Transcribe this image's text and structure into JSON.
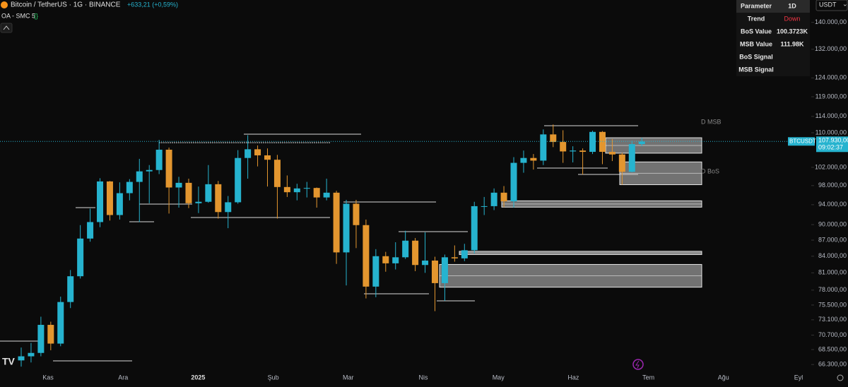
{
  "header": {
    "symbol": "Bitcoin / TetherUS · 1G · BINANCE",
    "change": "+633,21 (+0,59%)",
    "indicator": "OA - SMC 5"
  },
  "currency": "USDT",
  "table": {
    "rows": [
      [
        "Parameter",
        "1D"
      ],
      [
        "Trend",
        "Down"
      ],
      [
        "BoS Value",
        "100.3723K"
      ],
      [
        "MSB Value",
        "111.98K"
      ],
      [
        "BoS Signal"
      ],
      [
        "MSB Signal"
      ]
    ]
  },
  "chart_data": {
    "type": "candlestick",
    "log_scale": true,
    "up_color": "#26b3cf",
    "down_color": "#e3962f",
    "open": [
      66900,
      67500,
      68000,
      72300,
      69400,
      76000,
      80400,
      87300,
      90500,
      98900,
      91900,
      96400,
      98800,
      101100,
      101400,
      106000,
      97600,
      98600,
      94300,
      94600,
      98300,
      92500,
      94500,
      104100,
      106100,
      104700,
      103700,
      97700,
      96600,
      97400,
      97500,
      95500,
      96500,
      84700,
      94200,
      89900,
      78600,
      84000,
      82700,
      83800,
      86900,
      82400,
      83200,
      79200,
      83800,
      83600,
      85100,
      93700,
      93700,
      96500,
      94700,
      103000,
      104100,
      103500,
      109600,
      107800,
      105600,
      105800,
      105500,
      110200,
      105500,
      104900,
      101000,
      107300
    ],
    "high": [
      68800,
      69500,
      73600,
      72800,
      76900,
      81500,
      89900,
      93200,
      99600,
      99000,
      98700,
      99400,
      103900,
      102500,
      108300,
      106500,
      99900,
      99500,
      97800,
      102500,
      99000,
      95800,
      105900,
      109400,
      107000,
      106300,
      104800,
      100200,
      98400,
      98800,
      97600,
      99500,
      96900,
      95000,
      95000,
      91000,
      85300,
      84800,
      86600,
      88800,
      87400,
      88500,
      83900,
      84300,
      86000,
      86300,
      94600,
      95600,
      97400,
      97900,
      104300,
      105800,
      105000,
      110800,
      112000,
      110600,
      106800,
      106300,
      110500,
      110400,
      108500,
      105300,
      108100,
      108800
    ],
    "low": [
      66000,
      66600,
      67500,
      68400,
      69000,
      75000,
      80000,
      86700,
      89500,
      90800,
      91000,
      94900,
      90500,
      94300,
      100500,
      92200,
      93400,
      93300,
      92300,
      94400,
      91200,
      89300,
      94200,
      99500,
      102200,
      97800,
      91200,
      95600,
      94900,
      95500,
      93400,
      94900,
      82600,
      78800,
      85500,
      76600,
      76800,
      81200,
      81600,
      83500,
      81300,
      81000,
      74500,
      76200,
      83000,
      83100,
      84500,
      91900,
      92900,
      93500,
      93400,
      100800,
      101500,
      102500,
      106600,
      103000,
      103100,
      100400,
      105000,
      102700,
      103400,
      98200,
      100900,
      106800
    ],
    "close": [
      67500,
      68000,
      72300,
      69400,
      76000,
      80400,
      87300,
      90500,
      98900,
      91900,
      96400,
      98800,
      101100,
      101400,
      106000,
      97600,
      98600,
      94300,
      94600,
      98300,
      92500,
      94500,
      104100,
      106100,
      104700,
      103700,
      97700,
      96600,
      97400,
      97500,
      95500,
      96500,
      84700,
      94200,
      89900,
      78600,
      84000,
      82700,
      83800,
      86900,
      82400,
      83200,
      79200,
      83800,
      83600,
      85100,
      93700,
      93700,
      96500,
      94700,
      103000,
      104100,
      103500,
      109600,
      107800,
      105600,
      105800,
      105500,
      110200,
      105500,
      104900,
      101000,
      107300,
      107900
    ],
    "ylim": [
      64900,
      147000
    ],
    "yticks": [
      {
        "value": 140000,
        "label": "140.000,00"
      },
      {
        "value": 132000,
        "label": "132.000,00"
      },
      {
        "value": 124000,
        "label": "124.000,00"
      },
      {
        "value": 119000,
        "label": "119.000,00"
      },
      {
        "value": 114000,
        "label": "114.000,00"
      },
      {
        "value": 110000,
        "label": "110.000,00"
      },
      {
        "value": 102000,
        "label": "102.000,00"
      },
      {
        "value": 98000,
        "label": "98.000,00"
      },
      {
        "value": 94000,
        "label": "94.000,00"
      },
      {
        "value": 90000,
        "label": "90.000,00"
      },
      {
        "value": 87000,
        "label": "87.000,00"
      },
      {
        "value": 84000,
        "label": "84.000,00"
      },
      {
        "value": 81000,
        "label": "81.000,00"
      },
      {
        "value": 78000,
        "label": "78.000,00"
      },
      {
        "value": 75500,
        "label": "75.500,00"
      },
      {
        "value": 73100,
        "label": "73.100,00"
      },
      {
        "value": 70700,
        "label": "70.700,00"
      },
      {
        "value": 68500,
        "label": "68.500,00"
      },
      {
        "value": 66300,
        "label": "66.300,00"
      }
    ],
    "xticks": [
      "Kas",
      "Ara",
      "2025",
      "Şub",
      "Mar",
      "Nis",
      "May",
      "Haz",
      "Tem",
      "Ağu",
      "Eyl"
    ],
    "zones": [
      {
        "top": 108800,
        "bottom": 105200
      },
      {
        "top": 103200,
        "bottom": 98200
      },
      {
        "top": 94800,
        "bottom": 93500
      },
      {
        "top": 84900,
        "bottom": 84300
      },
      {
        "top": 82500,
        "bottom": 78500
      }
    ],
    "zone_labels": [
      "D MSB",
      "D BoS"
    ],
    "current_price": {
      "value": 107930,
      "label": "107.930,00"
    },
    "countdown": "09:02:37",
    "ticker": "BTCUSDT"
  }
}
